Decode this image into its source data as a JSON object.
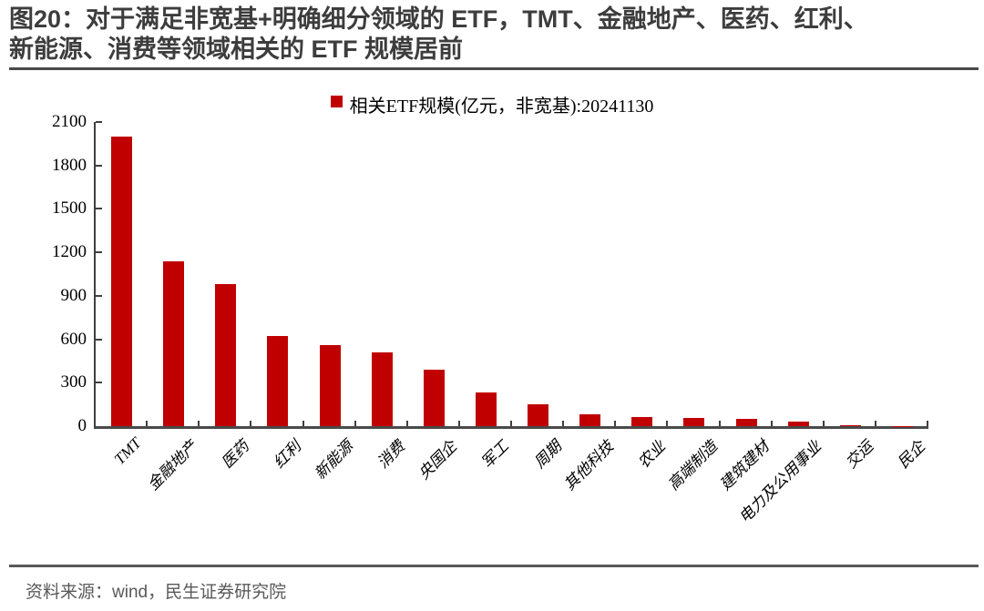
{
  "figure": {
    "title_line1": "图20：对于满足非宽基+明确细分领域的 ETF，TMT、金融地产、医药、红利、",
    "title_line2": "新能源、消费等领域相关的 ETF 规模居前",
    "source": "资料来源：wind，民生证券研究院"
  },
  "chart_data": {
    "type": "bar",
    "title": "",
    "legend": "相关ETF规模(亿元，非宽基):20241130",
    "legend_position": "top-center",
    "bar_color": "#C00000",
    "axis_color": "#3f3f3f",
    "grid": false,
    "categories": [
      "TMT",
      "金融地产",
      "医药",
      "红利",
      "新能源",
      "消费",
      "央国企",
      "军工",
      "周期",
      "其他科技",
      "农业",
      "高端制造",
      "建筑建材",
      "电力及公用事业",
      "交运",
      "民企"
    ],
    "values": [
      2000,
      1140,
      980,
      620,
      560,
      510,
      390,
      230,
      150,
      80,
      65,
      55,
      50,
      30,
      5,
      2
    ],
    "xlabel": "",
    "ylabel": "",
    "ylim": [
      0,
      2100
    ],
    "yticks": [
      0,
      300,
      600,
      900,
      1200,
      1500,
      1800,
      2100
    ]
  }
}
